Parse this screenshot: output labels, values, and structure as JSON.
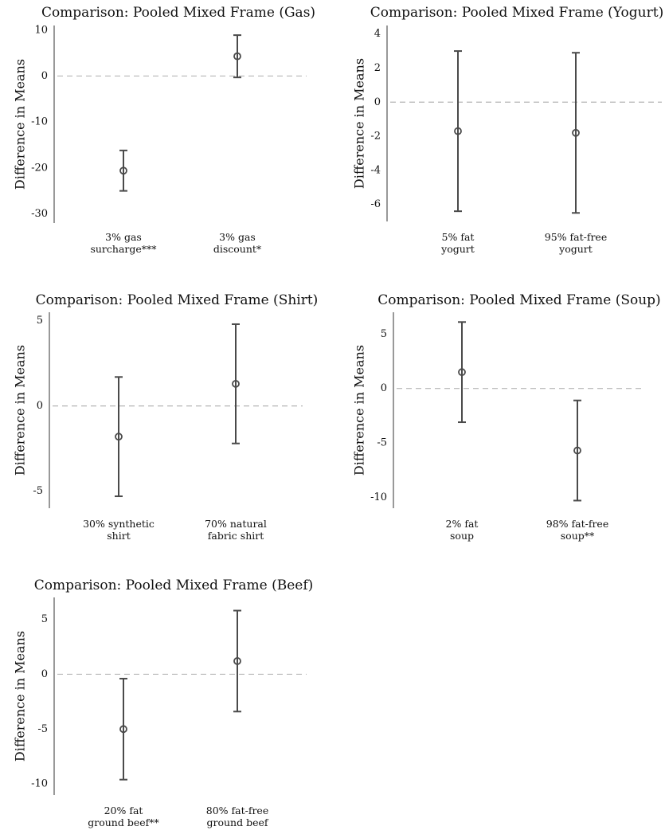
{
  "chart_data": [
    {
      "type": "errorbar",
      "title": "Comparison: Pooled Mixed Frame (Gas)",
      "ylabel": "Difference in Means",
      "ylim": [
        -32,
        11
      ],
      "yticks": [
        10,
        0,
        -10,
        -20,
        -30
      ],
      "ytick_labels": [
        "10",
        "0",
        "-10",
        "-20",
        "-30"
      ],
      "categories": [
        [
          "3% gas",
          "surcharge***"
        ],
        [
          "3% gas",
          "discount*"
        ]
      ],
      "estimates": [
        -20.6,
        4.3
      ],
      "lower": [
        -25.0,
        -0.3
      ],
      "upper": [
        -16.2,
        8.9
      ]
    },
    {
      "type": "errorbar",
      "title": "Comparison: Pooled Mixed Frame (Yogurt)",
      "ylabel": "Difference in Means",
      "ylim": [
        -7.0,
        4.5
      ],
      "yticks": [
        4,
        2,
        0,
        -2,
        -4,
        -6
      ],
      "ytick_labels": [
        "4",
        "2",
        "0",
        "-2",
        "-4",
        "-6"
      ],
      "categories": [
        [
          "5% fat",
          "yogurt"
        ],
        [
          "95% fat-free",
          "yogurt"
        ]
      ],
      "estimates": [
        -1.7,
        -1.8
      ],
      "lower": [
        -6.4,
        -6.5
      ],
      "upper": [
        3.0,
        2.9
      ]
    },
    {
      "type": "errorbar",
      "title": "Comparison: Pooled Mixed Frame (Shirt)",
      "ylabel": "Difference in Means",
      "ylim": [
        -6.0,
        5.5
      ],
      "yticks": [
        5,
        0,
        -5
      ],
      "ytick_labels": [
        "5",
        "0",
        "-5"
      ],
      "categories": [
        [
          "30% synthetic",
          "shirt"
        ],
        [
          "70% natural",
          "fabric shirt"
        ]
      ],
      "estimates": [
        -1.8,
        1.3
      ],
      "lower": [
        -5.3,
        -2.2
      ],
      "upper": [
        1.7,
        4.8
      ]
    },
    {
      "type": "errorbar",
      "title": "Comparison: Pooled Mixed Frame (Soup)",
      "ylabel": "Difference in Means",
      "ylim": [
        -11.0,
        7.0
      ],
      "yticks": [
        5,
        0,
        -5,
        -10
      ],
      "ytick_labels": [
        "5",
        "0",
        "-5",
        "-10"
      ],
      "categories": [
        [
          "2% fat",
          "soup"
        ],
        [
          "98% fat-free",
          "soup**"
        ]
      ],
      "estimates": [
        1.5,
        -5.7
      ],
      "lower": [
        -3.1,
        -10.3
      ],
      "upper": [
        6.1,
        -1.1
      ]
    },
    {
      "type": "errorbar",
      "title": "Comparison: Pooled Mixed Frame (Beef)",
      "ylabel": "Difference in Means",
      "ylim": [
        -11.0,
        7.0
      ],
      "yticks": [
        5,
        0,
        -5,
        -10
      ],
      "ytick_labels": [
        "5",
        "0",
        "-5",
        "-10"
      ],
      "categories": [
        [
          "20% fat",
          "ground beef**"
        ],
        [
          "80% fat-free",
          "ground beef"
        ]
      ],
      "estimates": [
        -5.0,
        1.2
      ],
      "lower": [
        -9.6,
        -3.4
      ],
      "upper": [
        -0.4,
        5.8
      ]
    }
  ]
}
